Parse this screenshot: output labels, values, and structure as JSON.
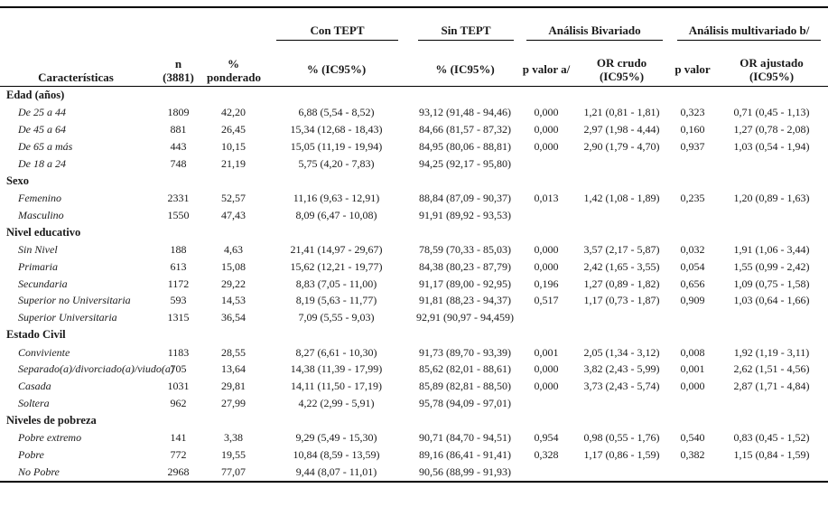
{
  "table": {
    "header": {
      "caracteristicas": "Características",
      "n": "n\n(3881)",
      "ponderado": "%\nponderado",
      "con_tept": "Con TEPT",
      "sin_tept": "Sin TEPT",
      "bivariado": "Análisis Bivariado",
      "multivariado": "Análisis multivariado b/",
      "pct_ic95_con": "% (IC95%)",
      "pct_ic95_sin": "% (IC95%)",
      "p_valor_a": "p valor a/",
      "or_crudo": "OR crudo\n(IC95%)",
      "p_valor": "p valor",
      "or_ajustado": "OR ajustado\n(IC95%)"
    },
    "sections": [
      {
        "label": "Edad (años)",
        "rows": [
          {
            "label": "De 25 a 44",
            "n": "1809",
            "pond": "42,20",
            "con": "6,88 (5,54 - 8,52)",
            "sin": "93,12 (91,48 - 94,46)",
            "p_biv": "0,000",
            "or_crudo": "1,21 (0,81 - 1,81)",
            "p_mult": "0,323",
            "or_ajust": "0,71 (0,45 - 1,13)"
          },
          {
            "label": "De 45 a 64",
            "n": "881",
            "pond": "26,45",
            "con": "15,34 (12,68 - 18,43)",
            "sin": "84,66 (81,57 - 87,32)",
            "p_biv": "0,000",
            "or_crudo": "2,97 (1,98 - 4,44)",
            "p_mult": "0,160",
            "or_ajust": "1,27 (0,78 - 2,08)"
          },
          {
            "label": "De 65 a más",
            "n": "443",
            "pond": "10,15",
            "con": "15,05 (11,19 - 19,94)",
            "sin": "84,95 (80,06 - 88,81)",
            "p_biv": "0,000",
            "or_crudo": "2,90 (1,79 - 4,70)",
            "p_mult": "0,937",
            "or_ajust": "1,03 (0,54 - 1,94)"
          },
          {
            "label": "De 18 a 24",
            "n": "748",
            "pond": "21,19",
            "con": "5,75 (4,20 - 7,83)",
            "sin": "94,25 (92,17 - 95,80)",
            "p_biv": "",
            "or_crudo": "",
            "p_mult": "",
            "or_ajust": ""
          }
        ]
      },
      {
        "label": "Sexo",
        "rows": [
          {
            "label": "Femenino",
            "n": "2331",
            "pond": "52,57",
            "con": "11,16 (9,63 - 12,91)",
            "sin": "88,84 (87,09 - 90,37)",
            "p_biv": "0,013",
            "or_crudo": "1,42 (1,08 - 1,89)",
            "p_mult": "0,235",
            "or_ajust": "1,20 (0,89 - 1,63)"
          },
          {
            "label": "Masculino",
            "n": "1550",
            "pond": "47,43",
            "con": "8,09 (6,47 - 10,08)",
            "sin": "91,91 (89,92 - 93,53)",
            "p_biv": "",
            "or_crudo": "",
            "p_mult": "",
            "or_ajust": ""
          }
        ]
      },
      {
        "label": "Nivel educativo",
        "rows": [
          {
            "label": "Sin Nivel",
            "n": "188",
            "pond": "4,63",
            "con": "21,41 (14,97 - 29,67)",
            "sin": "78,59 (70,33 - 85,03)",
            "p_biv": "0,000",
            "or_crudo": "3,57 (2,17 - 5,87)",
            "p_mult": "0,032",
            "or_ajust": "1,91 (1,06 - 3,44)"
          },
          {
            "label": "Primaria",
            "n": "613",
            "pond": "15,08",
            "con": "15,62 (12,21 - 19,77)",
            "sin": "84,38 (80,23 - 87,79)",
            "p_biv": "0,000",
            "or_crudo": "2,42 (1,65 - 3,55)",
            "p_mult": "0,054",
            "or_ajust": "1,55 (0,99 - 2,42)"
          },
          {
            "label": "Secundaria",
            "n": "1172",
            "pond": "29,22",
            "con": "8,83 (7,05 - 11,00)",
            "sin": "91,17 (89,00 - 92,95)",
            "p_biv": "0,196",
            "or_crudo": "1,27 (0,89 - 1,82)",
            "p_mult": "0,656",
            "or_ajust": "1,09 (0,75 - 1,58)"
          },
          {
            "label": "Superior no Universitaria",
            "n": "593",
            "pond": "14,53",
            "con": "8,19 (5,63 - 11,77)",
            "sin": "91,81 (88,23 - 94,37)",
            "p_biv": "0,517",
            "or_crudo": "1,17 (0,73 - 1,87)",
            "p_mult": "0,909",
            "or_ajust": "1,03 (0,64 - 1,66)"
          },
          {
            "label": "Superior Universitaria",
            "n": "1315",
            "pond": "36,54",
            "con": "7,09 (5,55 - 9,03)",
            "sin": "92,91 (90,97 - 94,459)",
            "p_biv": "",
            "or_crudo": "",
            "p_mult": "",
            "or_ajust": ""
          }
        ]
      },
      {
        "label": "Estado Civil",
        "rows": [
          {
            "label": "Conviviente",
            "n": "1183",
            "pond": "28,55",
            "con": "8,27 (6,61 - 10,30)",
            "sin": "91,73 (89,70 - 93,39)",
            "p_biv": "0,001",
            "or_crudo": "2,05 (1,34 - 3,12)",
            "p_mult": "0,008",
            "or_ajust": "1,92 (1,19 - 3,11)"
          },
          {
            "label": "Separado(a)/divorciado(a)/viudo(a)",
            "n": "705",
            "pond": "13,64",
            "con": "14,38 (11,39 - 17,99)",
            "sin": "85,62 (82,01 - 88,61)",
            "p_biv": "0,000",
            "or_crudo": "3,82 (2,43 - 5,99)",
            "p_mult": "0,001",
            "or_ajust": "2,62 (1,51 - 4,56)"
          },
          {
            "label": "Casada",
            "n": "1031",
            "pond": "29,81",
            "con": "14,11 (11,50 - 17,19)",
            "sin": "85,89 (82,81 - 88,50)",
            "p_biv": "0,000",
            "or_crudo": "3,73 (2,43 - 5,74)",
            "p_mult": "0,000",
            "or_ajust": "2,87 (1,71 - 4,84)"
          },
          {
            "label": "Soltera",
            "n": "962",
            "pond": "27,99",
            "con": "4,22 (2,99 - 5,91)",
            "sin": "95,78 (94,09 - 97,01)",
            "p_biv": "",
            "or_crudo": "",
            "p_mult": "",
            "or_ajust": ""
          }
        ]
      },
      {
        "label": "Niveles de pobreza",
        "rows": [
          {
            "label": "Pobre extremo",
            "n": "141",
            "pond": "3,38",
            "con": "9,29 (5,49 - 15,30)",
            "sin": "90,71 (84,70 - 94,51)",
            "p_biv": "0,954",
            "or_crudo": "0,98 (0,55 - 1,76)",
            "p_mult": "0,540",
            "or_ajust": "0,83 (0,45 - 1,52)"
          },
          {
            "label": "Pobre",
            "n": "772",
            "pond": "19,55",
            "con": "10,84 (8,59 - 13,59)",
            "sin": "89,16 (86,41 - 91,41)",
            "p_biv": "0,328",
            "or_crudo": "1,17 (0,86 - 1,59)",
            "p_mult": "0,382",
            "or_ajust": "1,15 (0,84 - 1,59)"
          },
          {
            "label": "No Pobre",
            "n": "2968",
            "pond": "77,07",
            "con": "9,44 (8,07 - 11,01)",
            "sin": "90,56 (88,99 - 91,93)",
            "p_biv": "",
            "or_crudo": "",
            "p_mult": "",
            "or_ajust": ""
          }
        ]
      }
    ]
  }
}
